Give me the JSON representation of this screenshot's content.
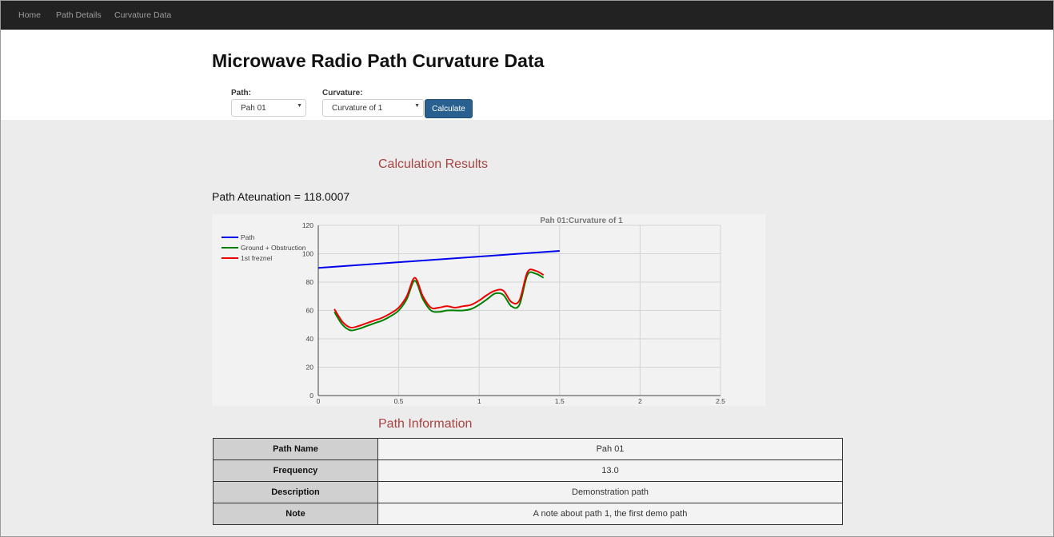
{
  "nav": {
    "items": [
      {
        "label": "Home"
      },
      {
        "label": "Path Details"
      },
      {
        "label": "Curvature Data"
      }
    ]
  },
  "page_title": "Microwave Radio Path Curvature Data",
  "form": {
    "path_label": "Path:",
    "path_value": "Pah 01",
    "curvature_label": "Curvature:",
    "curvature_value": "Curvature of 1",
    "calculate_label": "Calculate"
  },
  "results": {
    "title": "Calculation Results",
    "attenuation_text": "Path Ateunation = 118.0007"
  },
  "chart_data": {
    "type": "line",
    "title": "Pah 01:Curvature of 1",
    "xlim": [
      0,
      2.5
    ],
    "ylim": [
      0,
      120
    ],
    "x_ticks": [
      "0",
      "0.5",
      "1",
      "1.5",
      "2",
      "2.5"
    ],
    "y_ticks": [
      "0",
      "20",
      "40",
      "60",
      "80",
      "100",
      "120"
    ],
    "grid": true,
    "legend_position": "top-left",
    "series": [
      {
        "name": "Path",
        "color": "#0000ee",
        "x": [
          0,
          1.5
        ],
        "y": [
          90,
          102
        ]
      },
      {
        "name": "Ground + Obstruction",
        "color": "#008000",
        "x": [
          0.1,
          0.15,
          0.2,
          0.25,
          0.3,
          0.35,
          0.4,
          0.45,
          0.5,
          0.55,
          0.6,
          0.65,
          0.7,
          0.75,
          0.8,
          0.85,
          0.9,
          0.95,
          1.0,
          1.05,
          1.1,
          1.15,
          1.2,
          1.25,
          1.3,
          1.35,
          1.4
        ],
        "y": [
          59,
          50,
          46,
          47,
          49,
          51,
          53,
          56,
          60,
          68,
          81,
          68,
          60,
          59,
          60,
          60,
          60,
          61,
          64,
          68,
          72,
          71,
          63,
          64,
          85,
          86,
          83
        ]
      },
      {
        "name": "1st freznel",
        "color": "#ee0000",
        "x": [
          0.1,
          0.15,
          0.2,
          0.25,
          0.3,
          0.35,
          0.4,
          0.45,
          0.5,
          0.55,
          0.6,
          0.65,
          0.7,
          0.75,
          0.8,
          0.85,
          0.9,
          0.95,
          1.0,
          1.05,
          1.1,
          1.15,
          1.2,
          1.25,
          1.3,
          1.35,
          1.4
        ],
        "y": [
          61,
          52,
          48,
          49,
          51,
          53,
          55,
          58,
          62,
          70,
          83,
          70,
          62,
          62,
          63,
          62,
          63,
          64,
          67,
          71,
          74,
          74,
          66,
          67,
          87,
          88,
          85
        ]
      }
    ]
  },
  "info": {
    "title": "Path Information",
    "rows": [
      {
        "key": "Path Name",
        "value": "Pah 01"
      },
      {
        "key": "Frequency",
        "value": "13.0"
      },
      {
        "key": "Description",
        "value": "Demonstration path"
      },
      {
        "key": "Note",
        "value": "A note about path 1, the first demo path"
      }
    ]
  }
}
